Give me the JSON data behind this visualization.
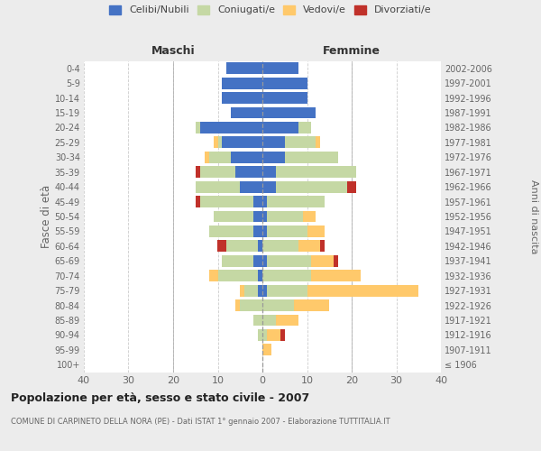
{
  "age_groups": [
    "100+",
    "95-99",
    "90-94",
    "85-89",
    "80-84",
    "75-79",
    "70-74",
    "65-69",
    "60-64",
    "55-59",
    "50-54",
    "45-49",
    "40-44",
    "35-39",
    "30-34",
    "25-29",
    "20-24",
    "15-19",
    "10-14",
    "5-9",
    "0-4"
  ],
  "birth_years": [
    "≤ 1906",
    "1907-1911",
    "1912-1916",
    "1917-1921",
    "1922-1926",
    "1927-1931",
    "1932-1936",
    "1937-1941",
    "1942-1946",
    "1947-1951",
    "1952-1956",
    "1957-1961",
    "1962-1966",
    "1967-1971",
    "1972-1976",
    "1977-1981",
    "1982-1986",
    "1987-1991",
    "1992-1996",
    "1997-2001",
    "2002-2006"
  ],
  "maschi": {
    "celibi": [
      0,
      0,
      0,
      0,
      0,
      1,
      1,
      2,
      1,
      2,
      2,
      2,
      5,
      6,
      7,
      9,
      14,
      7,
      9,
      9,
      8
    ],
    "coniugati": [
      0,
      0,
      1,
      2,
      5,
      3,
      9,
      7,
      7,
      10,
      9,
      12,
      10,
      8,
      5,
      1,
      1,
      0,
      0,
      0,
      0
    ],
    "vedovi": [
      0,
      0,
      0,
      0,
      1,
      1,
      2,
      0,
      0,
      0,
      0,
      0,
      0,
      0,
      1,
      1,
      0,
      0,
      0,
      0,
      0
    ],
    "divorziati": [
      0,
      0,
      0,
      0,
      0,
      0,
      0,
      0,
      2,
      0,
      0,
      1,
      0,
      1,
      0,
      0,
      0,
      0,
      0,
      0,
      0
    ]
  },
  "femmine": {
    "nubili": [
      0,
      0,
      0,
      0,
      0,
      1,
      0,
      1,
      0,
      1,
      1,
      1,
      3,
      3,
      5,
      5,
      8,
      12,
      10,
      10,
      8
    ],
    "coniugate": [
      0,
      0,
      1,
      3,
      7,
      9,
      11,
      10,
      8,
      9,
      8,
      13,
      16,
      18,
      12,
      7,
      3,
      0,
      0,
      0,
      0
    ],
    "vedove": [
      0,
      2,
      3,
      5,
      8,
      25,
      11,
      5,
      5,
      4,
      3,
      0,
      0,
      0,
      0,
      1,
      0,
      0,
      0,
      0,
      0
    ],
    "divorziate": [
      0,
      0,
      1,
      0,
      0,
      0,
      0,
      1,
      1,
      0,
      0,
      0,
      2,
      0,
      0,
      0,
      0,
      0,
      0,
      0,
      0
    ]
  },
  "colors": {
    "celibi_nubili": "#4472c4",
    "coniugati": "#c5d8a4",
    "vedovi": "#ffc96b",
    "divorziati": "#c0312a"
  },
  "xlim": 40,
  "title": "Popolazione per età, sesso e stato civile - 2007",
  "subtitle": "COMUNE DI CARPINETO DELLA NORA (PE) - Dati ISTAT 1° gennaio 2007 - Elaborazione TUTTITALIA.IT",
  "ylabel_left": "Fasce di età",
  "ylabel_right": "Anni di nascita",
  "xlabel_maschi": "Maschi",
  "xlabel_femmine": "Femmine",
  "bg_color": "#ececec",
  "plot_bg": "#ffffff"
}
